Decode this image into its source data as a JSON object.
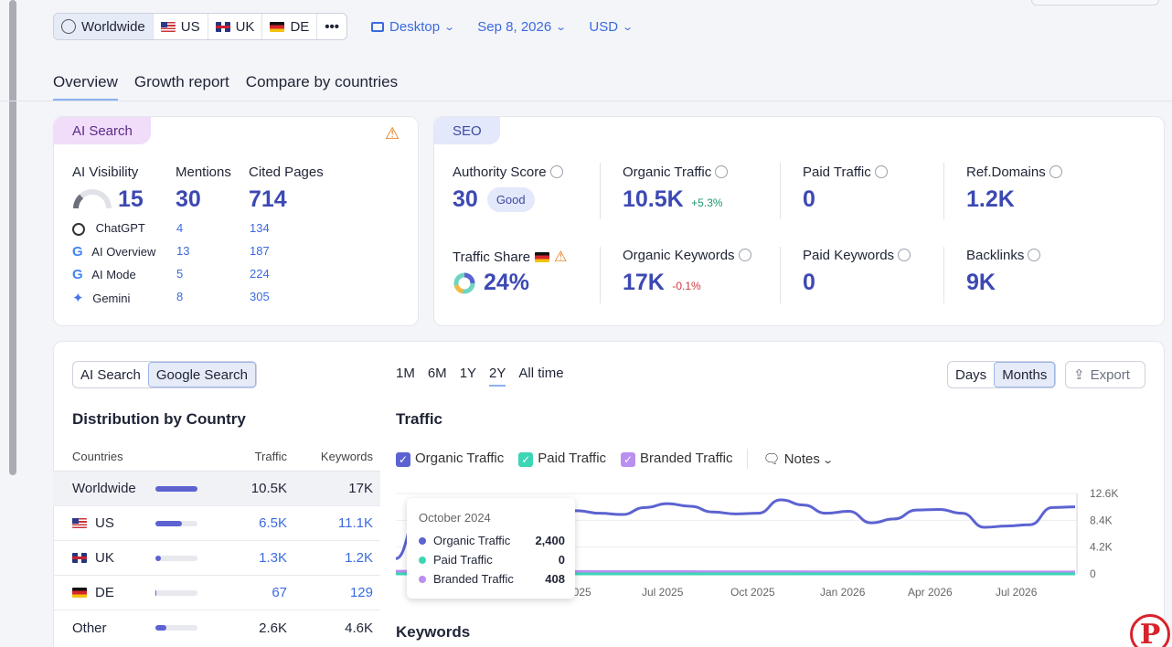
{
  "filters": {
    "regions": [
      {
        "label": "Worldwide",
        "active": true
      },
      {
        "label": "US"
      },
      {
        "label": "UK"
      },
      {
        "label": "DE"
      }
    ],
    "more": "•••",
    "device": "Desktop",
    "date": "Sep 8, 2026",
    "currency": "USD"
  },
  "tabs": [
    "Overview",
    "Growth report",
    "Compare by countries"
  ],
  "ai_card": {
    "pill": "AI Search",
    "headers": {
      "visibility": "AI Visibility",
      "mentions": "Mentions",
      "cited": "Cited Pages"
    },
    "visibility": "15",
    "mentions": "30",
    "cited": "714",
    "rows": [
      {
        "name": "ChatGPT",
        "mentions": "4",
        "cited": "134"
      },
      {
        "name": "AI Overview",
        "mentions": "13",
        "cited": "187"
      },
      {
        "name": "AI Mode",
        "mentions": "5",
        "cited": "224"
      },
      {
        "name": "Gemini",
        "mentions": "8",
        "cited": "305"
      }
    ]
  },
  "seo_card": {
    "pill": "SEO",
    "authority_label": "Authority Score",
    "authority_value": "30",
    "authority_badge": "Good",
    "organic_traffic_label": "Organic Traffic",
    "organic_traffic_value": "10.5K",
    "organic_traffic_delta": "+5.3%",
    "paid_traffic_label": "Paid Traffic",
    "paid_traffic_value": "0",
    "ref_domains_label": "Ref.Domains",
    "ref_domains_value": "1.2K",
    "traffic_share_label": "Traffic Share",
    "traffic_share_value": "24%",
    "organic_keywords_label": "Organic Keywords",
    "organic_keywords_value": "17K",
    "organic_keywords_delta": "-0.1%",
    "paid_keywords_label": "Paid Keywords",
    "paid_keywords_value": "0",
    "backlinks_label": "Backlinks",
    "backlinks_value": "9K"
  },
  "bottom": {
    "source_toggle": [
      "AI Search",
      "Google Search"
    ],
    "periods": [
      "1M",
      "6M",
      "1Y",
      "2Y",
      "All time"
    ],
    "granularity": [
      "Days",
      "Months"
    ],
    "export": "Export",
    "distribution_title": "Distribution by Country",
    "table_headers": [
      "Countries",
      "Traffic",
      "Keywords"
    ],
    "table_rows": [
      {
        "country": "Worldwide",
        "traffic": "10.5K",
        "keywords": "17K",
        "share": 1.0
      },
      {
        "country": "US",
        "traffic": "6.5K",
        "keywords": "11.1K",
        "share": 0.62
      },
      {
        "country": "UK",
        "traffic": "1.3K",
        "keywords": "1.2K",
        "share": 0.12
      },
      {
        "country": "DE",
        "traffic": "67",
        "keywords": "129",
        "share": 0.01
      },
      {
        "country": "Other",
        "traffic": "2.6K",
        "keywords": "4.6K",
        "share": 0.25
      }
    ],
    "traffic_title": "Traffic",
    "legend": [
      "Organic Traffic",
      "Paid Traffic",
      "Branded Traffic"
    ],
    "notes": "Notes",
    "keywords_title": "Keywords"
  },
  "tooltip": {
    "title": "October 2024",
    "rows": [
      {
        "name": "Organic Traffic",
        "value": "2,400"
      },
      {
        "name": "Paid Traffic",
        "value": "0"
      },
      {
        "name": "Branded Traffic",
        "value": "408"
      }
    ]
  },
  "chart_data": {
    "type": "line",
    "x_ticks": [
      "2025",
      "Jul 2025",
      "Oct 2025",
      "Jan 2026",
      "Apr 2026",
      "Jul 2026"
    ],
    "y_ticks": [
      "12.6K",
      "8.4K",
      "4.2K",
      "0"
    ],
    "ylim": [
      0,
      12600
    ],
    "series": [
      {
        "name": "Organic Traffic",
        "color": "#5c63d1",
        "values": [
          2400,
          9100,
          9700,
          9400,
          9300,
          9500,
          9100,
          9600,
          9900,
          9500,
          9300,
          10400,
          11000,
          10600,
          9700,
          9400,
          9500,
          11600,
          10800,
          9500,
          9800,
          8000,
          8600,
          10000,
          10100,
          9500,
          7300,
          7500,
          7700,
          10400,
          10500
        ]
      },
      {
        "name": "Paid Traffic",
        "color": "#3cd6b6",
        "values": [
          0,
          0,
          0,
          0,
          0,
          0,
          0,
          0,
          0,
          0,
          0,
          0,
          0,
          0,
          0,
          0,
          0,
          0,
          0,
          0,
          0,
          0,
          0,
          0,
          0,
          0,
          0,
          0,
          0,
          0,
          0
        ]
      },
      {
        "name": "Branded Traffic",
        "color": "#b98ff0",
        "values": [
          408,
          410,
          400,
          395,
          390,
          385,
          380,
          375,
          370,
          365,
          360,
          355,
          350,
          350,
          345,
          340,
          340,
          335,
          330,
          330,
          325,
          320,
          320,
          315,
          310,
          310,
          305,
          300,
          300,
          300,
          300
        ]
      }
    ],
    "colors": {
      "organic": "#5c63d1",
      "paid": "#3cd6b6",
      "branded": "#b98ff0"
    }
  }
}
